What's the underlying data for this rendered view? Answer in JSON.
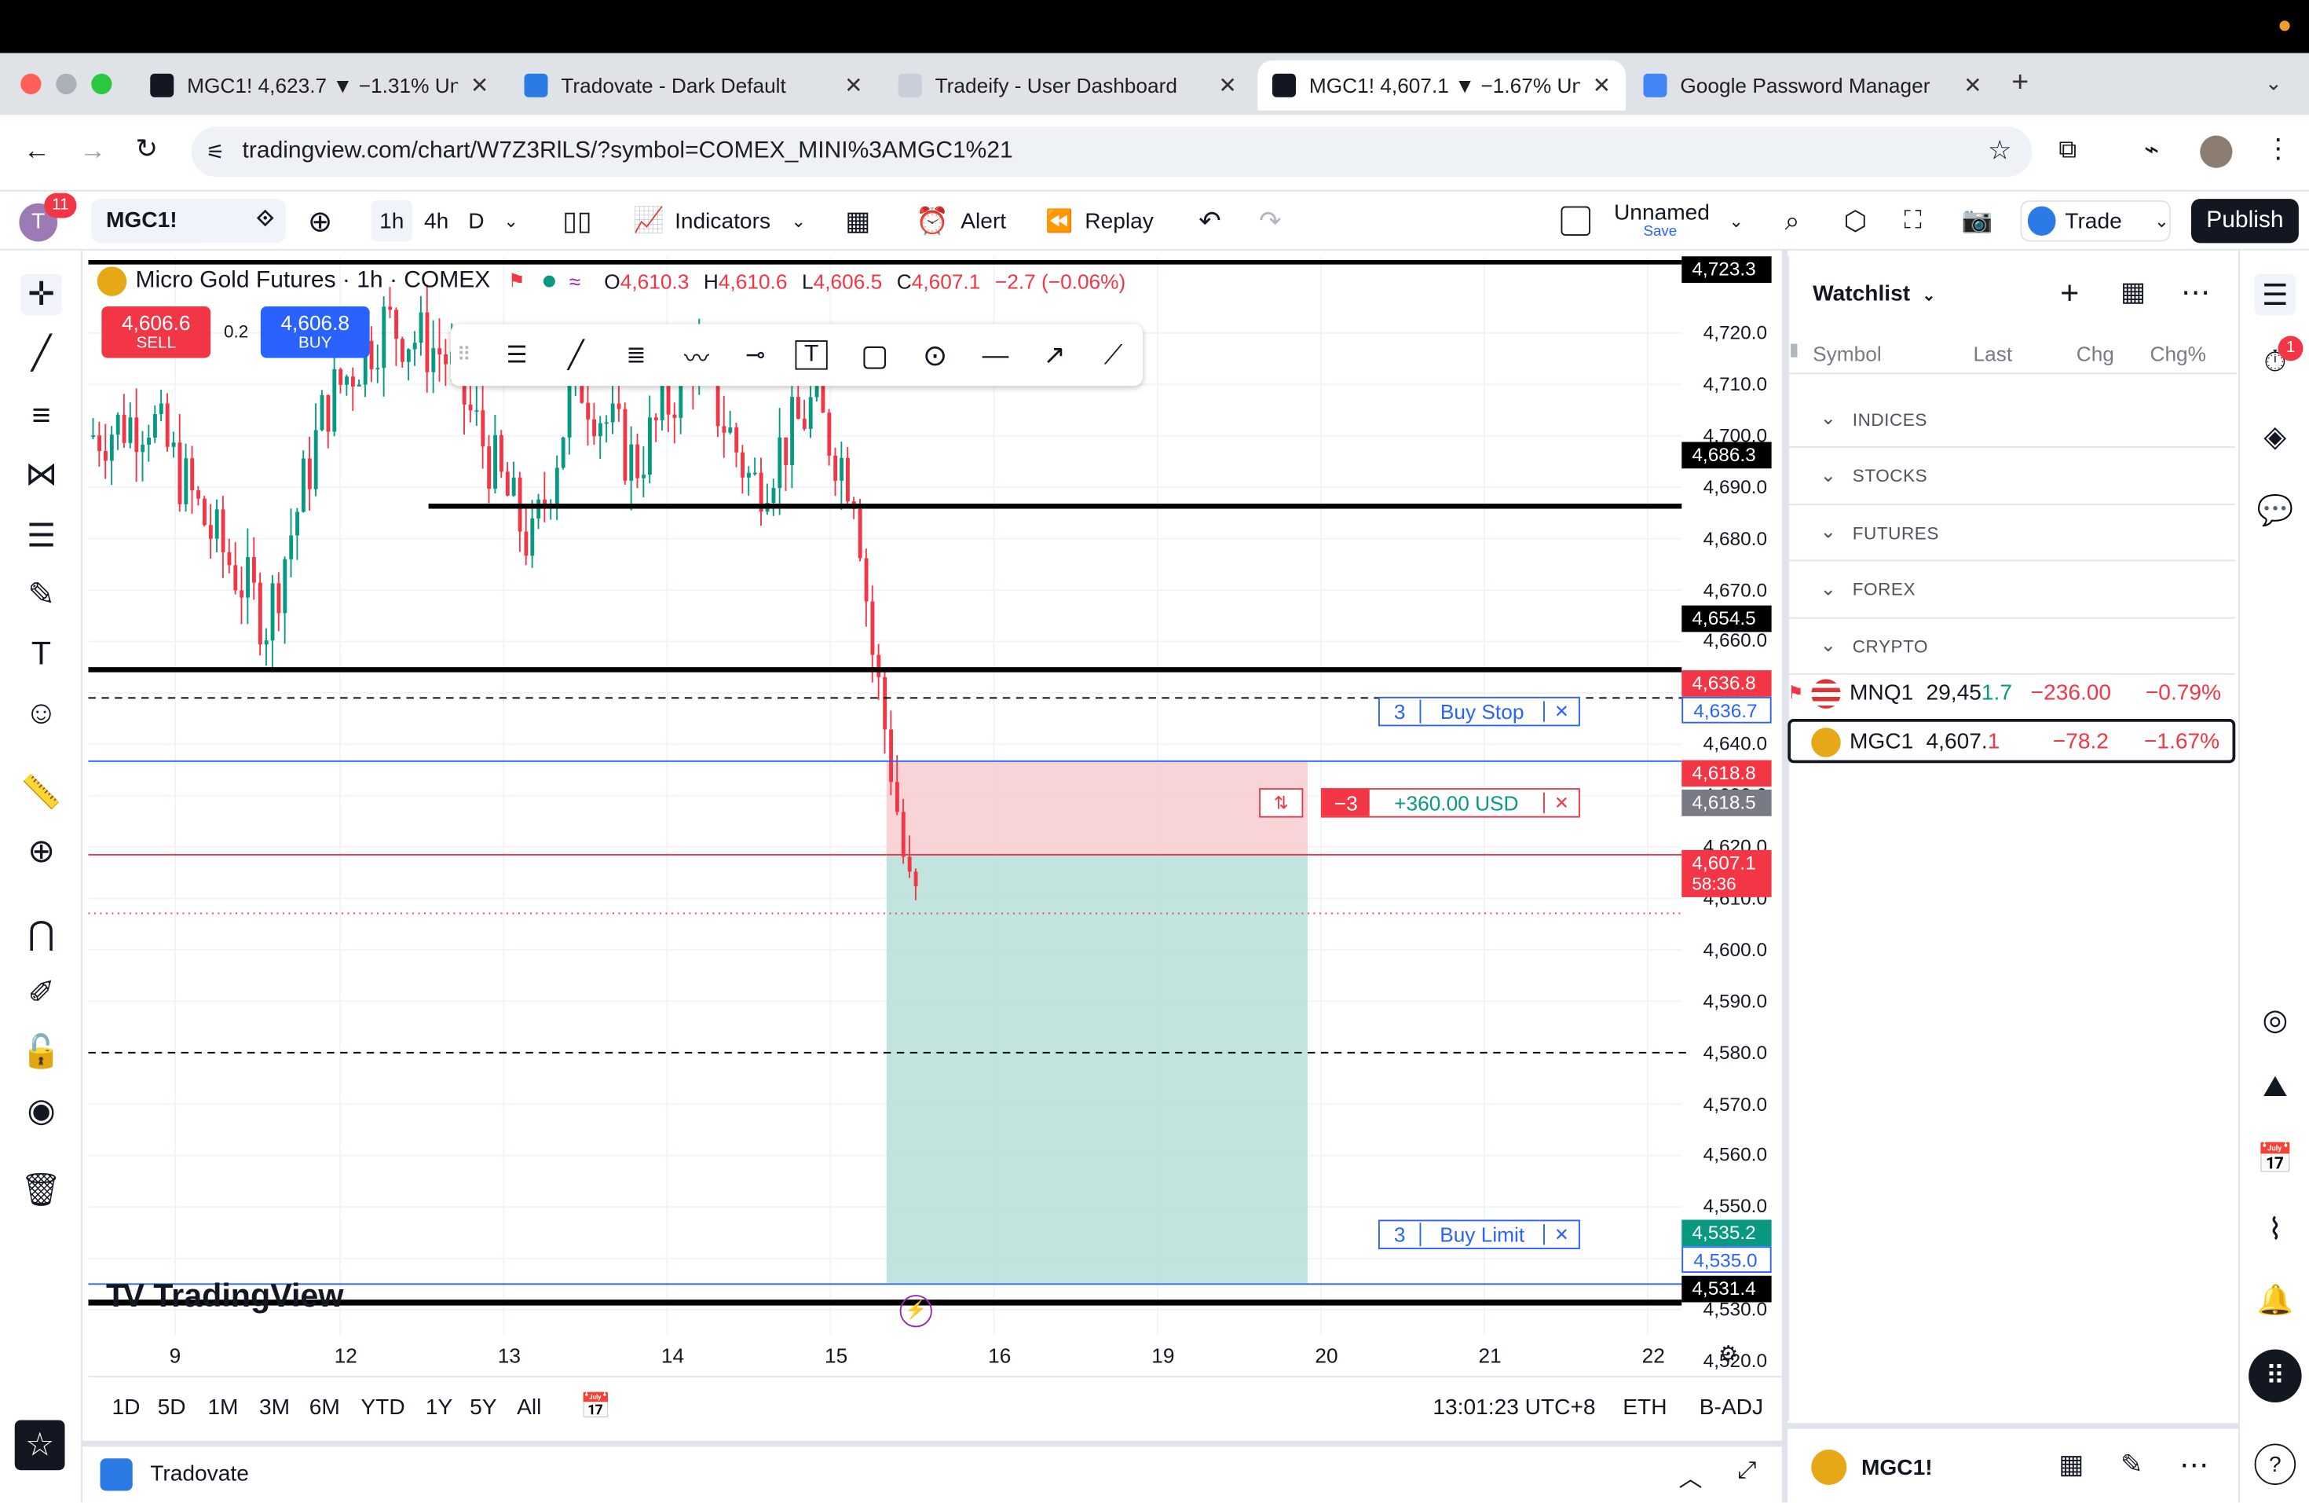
{
  "browser": {
    "tabs": [
      {
        "title": "MGC1! 4,623.7 ▼ −1.31% Unn",
        "close": "✕",
        "fav_color": "#131722"
      },
      {
        "title": "Tradovate - Dark Default",
        "close": "✕",
        "fav_color": "#2c7be5"
      },
      {
        "title": "Tradeify - User Dashboard",
        "close": "✕",
        "fav_color": "#c9cfd8"
      },
      {
        "title": "MGC1! 4,607.1 ▼ −1.67% Unn",
        "close": "✕",
        "fav_color": "#131722"
      },
      {
        "title": "Google Password Manager",
        "close": "✕",
        "fav_color": "#4285f4"
      }
    ],
    "new_tab": "+",
    "url": "tradingview.com/chart/W7Z3RlLS/?symbol=COMEX_MINI%3AMGC1%21"
  },
  "toolbar": {
    "symbol": "MGC1!",
    "intervals": [
      "1h",
      "4h",
      "D"
    ],
    "indicators": "Indicators",
    "alert": "Alert",
    "replay": "Replay",
    "layout_name": "Unnamed",
    "layout_save": "Save",
    "trade": "Trade",
    "publish": "Publish",
    "notif_count": "11"
  },
  "legend": {
    "title": "Micro Gold Futures · 1h · COMEX",
    "o_label": "O",
    "o": "4,610.3",
    "h_label": "H",
    "h": "4,610.6",
    "l_label": "L",
    "l": "4,606.5",
    "c_label": "C",
    "c": "4,607.1",
    "change": "−2.7 (−0.06%)",
    "sell_price": "4,606.6",
    "sell": "SELL",
    "spread": "0.2",
    "buy_price": "4,606.8",
    "buy": "BUY"
  },
  "price_axis": [
    "4,720.0",
    "4,710.0",
    "4,700.0",
    "4,690.0",
    "4,680.0",
    "4,670.0",
    "4,660.0",
    "4,650.0",
    "4,640.0",
    "4,630.0",
    "4,620.0",
    "4,610.0",
    "4,600.0",
    "4,590.0",
    "4,580.0",
    "4,570.0",
    "4,560.0",
    "4,550.0",
    "4,540.0",
    "4,530.0",
    "4,520.0"
  ],
  "price_tags": {
    "t4723": "4,723.3",
    "t4686": "4,686.3",
    "t4654": "4,654.5",
    "t4636_8": "4,636.8",
    "t4636_7": "4,636.7",
    "t4618_8": "4,618.8",
    "t4618_5": "4,618.5",
    "last": "4,607.1",
    "countdown": "58:36",
    "t4535_2": "4,535.2",
    "t4535_0": "4,535.0",
    "t4531": "4,531.4"
  },
  "orders": {
    "buy_stop_qty": "3",
    "buy_stop": "Buy Stop",
    "position_qty": "−3",
    "position_pnl": "+360.00 USD",
    "buy_limit_qty": "3",
    "buy_limit": "Buy Limit",
    "close_x": "✕",
    "reverse_icon": "⇅"
  },
  "time_axis": [
    "9",
    "12",
    "13",
    "14",
    "15",
    "16",
    "19",
    "20",
    "21",
    "22"
  ],
  "ranges": [
    "1D",
    "5D",
    "1M",
    "3M",
    "6M",
    "YTD",
    "1Y",
    "5Y",
    "All"
  ],
  "status": {
    "clock": "13:01:23 UTC+8",
    "session": "ETH",
    "adj": "B-ADJ"
  },
  "watermark": "TradingView",
  "bottom_panel": {
    "broker": "Tradovate"
  },
  "watchlist": {
    "title": "Watchlist",
    "cols": [
      "Symbol",
      "Last",
      "Chg",
      "Chg%"
    ],
    "sections": [
      "INDICES",
      "STOCKS",
      "FUTURES",
      "FOREX",
      "CRYPTO"
    ],
    "rows": [
      {
        "sym": "MNQ1",
        "last_a": "29,45",
        "last_b": "1.7",
        "chg": "−236.00",
        "pct": "−0.79%"
      },
      {
        "sym": "MGC1",
        "last_a": "4,607.",
        "last_b": "1",
        "chg": "−78.2",
        "pct": "−1.67%"
      }
    ],
    "footer_symbol": "MGC1!",
    "alerts_badge": "1"
  },
  "colors": {
    "up": "#089981",
    "down": "#f23645",
    "accent": "#2962ff"
  }
}
